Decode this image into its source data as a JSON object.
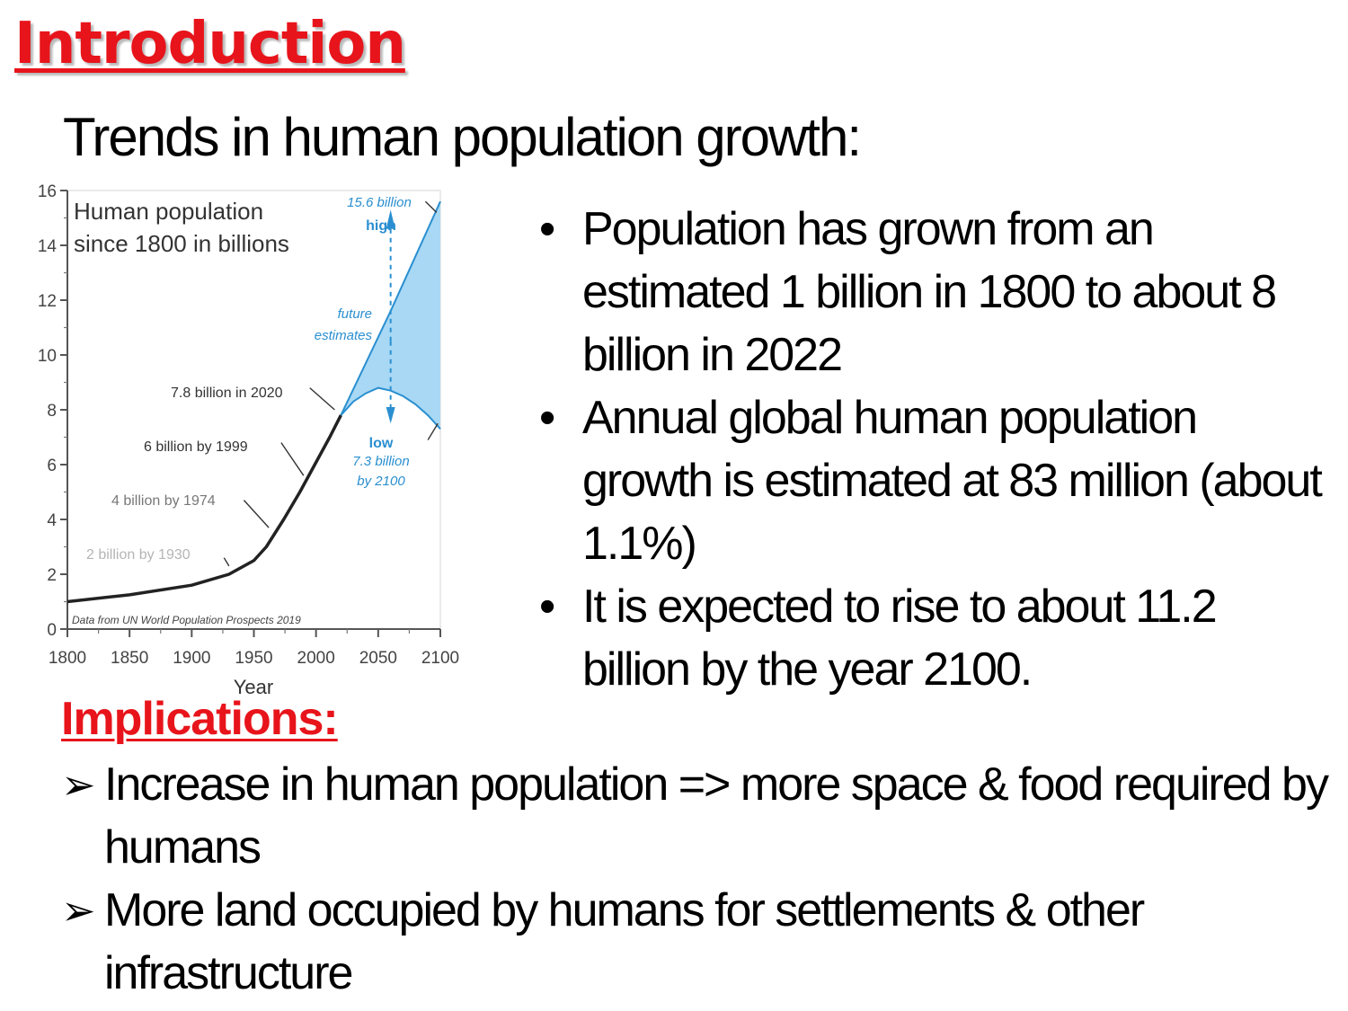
{
  "slide": {
    "title": "Introduction",
    "subtitle": "Trends in human population growth:",
    "bullets": [
      "Population has grown from an estimated 1 billion in 1800 to about 8 billion in 2022",
      "Annual global human population growth is estimated at 83 million (about 1.1%)",
      "It is expected to rise to about 11.2 billion by the year 2100."
    ],
    "implications_heading": "Implications:",
    "implications": [
      "Increase in human population => more space & food required by humans",
      "More land occupied by humans for settlements & other infrastructure"
    ],
    "bullet_glyph": "•",
    "arrow_glyph": "➢"
  },
  "chart_data": {
    "type": "line",
    "title": "Human population since 1800 in billions",
    "title_lines": [
      "Human population",
      "since 1800 in billions"
    ],
    "xlabel": "Year",
    "ylabel": "",
    "xlim": [
      1800,
      2100
    ],
    "ylim": [
      0,
      16
    ],
    "x_ticks": [
      1800,
      1850,
      1900,
      1950,
      2000,
      2050,
      2100
    ],
    "y_ticks": [
      0,
      2,
      4,
      6,
      8,
      10,
      12,
      14,
      16
    ],
    "series": [
      {
        "values_x": [
          1800,
          1850,
          1900,
          1930,
          1950,
          1960,
          1974,
          1987,
          1999,
          2011,
          2020
        ],
        "values_y": [
          1.0,
          1.25,
          1.6,
          2.0,
          2.5,
          3.0,
          4.0,
          5.0,
          6.0,
          7.0,
          7.8
        ]
      }
    ],
    "projection": {
      "high_x": [
        2020,
        2040,
        2060,
        2080,
        2100
      ],
      "high_y": [
        7.8,
        9.7,
        11.6,
        13.6,
        15.6
      ],
      "low_x": [
        2020,
        2030,
        2040,
        2050,
        2060,
        2070,
        2080,
        2090,
        2100
      ],
      "low_y": [
        7.8,
        8.3,
        8.6,
        8.8,
        8.7,
        8.5,
        8.2,
        7.8,
        7.3
      ],
      "fill_color": "#a8d8f4",
      "line_color": "#2a8fd0"
    },
    "annotations": [
      {
        "text": "15.6 billion",
        "style": "blue-italic"
      },
      {
        "text": "high",
        "style": "blue-bold"
      },
      {
        "text": "future",
        "style": "blue-italic"
      },
      {
        "text": "estimates",
        "style": "blue-italic"
      },
      {
        "text": "7.8 billion in 2020",
        "style": "plain"
      },
      {
        "text": "6 billion by 1999",
        "style": "plain"
      },
      {
        "text": "4 billion by 1974",
        "style": "faded"
      },
      {
        "text": "2 billion by 1930",
        "style": "faded"
      },
      {
        "text": "low",
        "style": "blue-bold"
      },
      {
        "text": "7.3 billion",
        "style": "blue-italic"
      },
      {
        "text": "by 2100",
        "style": "blue-italic"
      }
    ],
    "source_note": "Data from UN World Population Prospects 2019"
  }
}
